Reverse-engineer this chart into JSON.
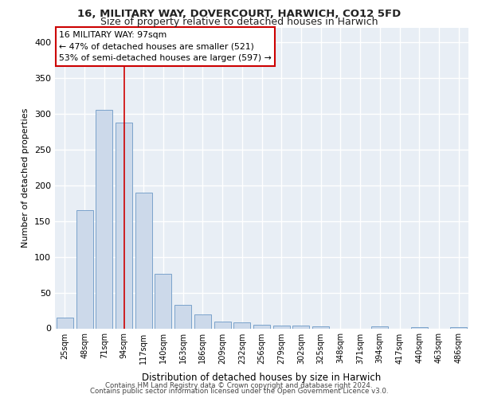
{
  "title_line1": "16, MILITARY WAY, DOVERCOURT, HARWICH, CO12 5FD",
  "title_line2": "Size of property relative to detached houses in Harwich",
  "xlabel": "Distribution of detached houses by size in Harwich",
  "ylabel": "Number of detached properties",
  "categories": [
    "25sqm",
    "48sqm",
    "71sqm",
    "94sqm",
    "117sqm",
    "140sqm",
    "163sqm",
    "186sqm",
    "209sqm",
    "232sqm",
    "256sqm",
    "279sqm",
    "302sqm",
    "325sqm",
    "348sqm",
    "371sqm",
    "394sqm",
    "417sqm",
    "440sqm",
    "463sqm",
    "486sqm"
  ],
  "values": [
    15,
    165,
    305,
    288,
    190,
    76,
    33,
    20,
    10,
    8,
    5,
    4,
    4,
    3,
    0,
    0,
    3,
    0,
    2,
    0,
    2
  ],
  "bar_color": "#ccd9ea",
  "bar_edge_color": "#7ba3cb",
  "vline_index": 3,
  "vline_color": "#cc0000",
  "annotation_line1": "16 MILITARY WAY: 97sqm",
  "annotation_line2": "← 47% of detached houses are smaller (521)",
  "annotation_line3": "53% of semi-detached houses are larger (597) →",
  "annotation_box_color": "#ffffff",
  "annotation_box_edge_color": "#cc0000",
  "ylim": [
    0,
    420
  ],
  "yticks": [
    0,
    50,
    100,
    150,
    200,
    250,
    300,
    350,
    400
  ],
  "background_color": "#e8eef5",
  "grid_color": "#ffffff",
  "fig_background": "#ffffff",
  "footer_line1": "Contains HM Land Registry data © Crown copyright and database right 2024.",
  "footer_line2": "Contains public sector information licensed under the Open Government Licence v3.0."
}
